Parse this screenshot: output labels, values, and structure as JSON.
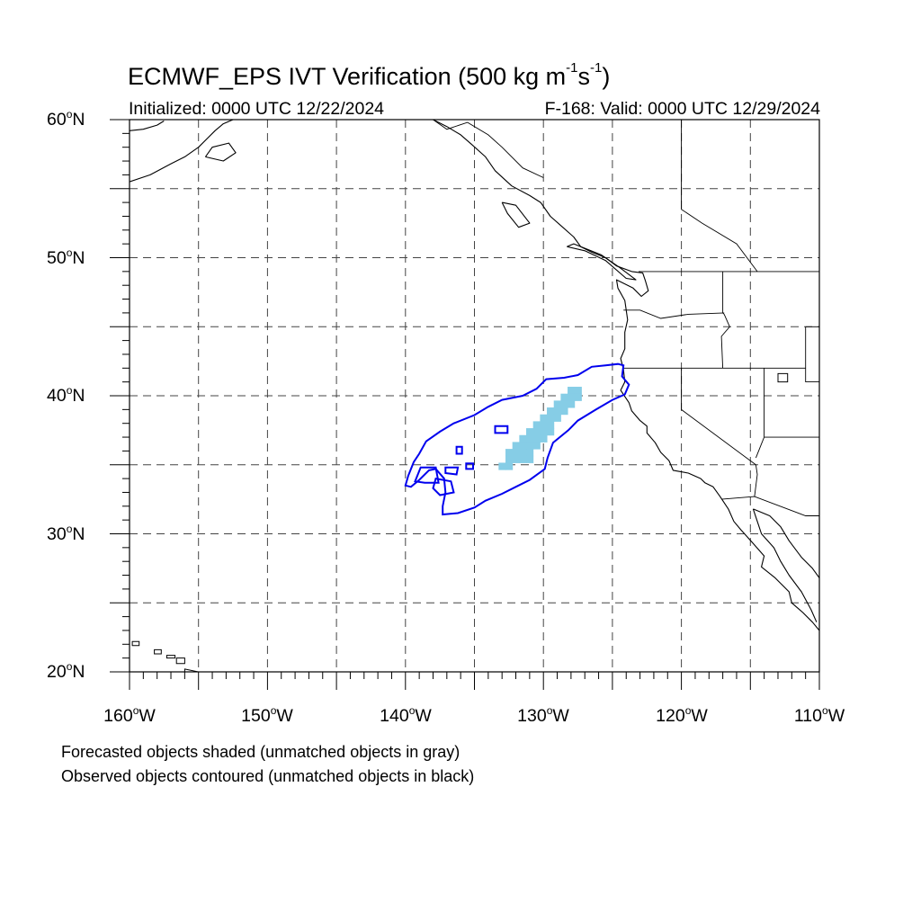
{
  "title": {
    "prefix": "ECMWF_EPS IVT Verification (500 kg m",
    "sup1": "-1",
    "mid": "s",
    "sup2": "-1",
    "suffix": ")"
  },
  "initialized": "Initialized: 0000 UTC 12/22/2024",
  "valid": "F-168: Valid: 0000 UTC 12/29/2024",
  "latitude_labels": [
    {
      "deg": "60",
      "hemi": "N",
      "value": 60
    },
    {
      "deg": "50",
      "hemi": "N",
      "value": 50
    },
    {
      "deg": "40",
      "hemi": "N",
      "value": 40
    },
    {
      "deg": "30",
      "hemi": "N",
      "value": 30
    },
    {
      "deg": "20",
      "hemi": "N",
      "value": 20
    }
  ],
  "longitude_labels": [
    {
      "deg": "160",
      "hemi": "W",
      "value": -160
    },
    {
      "deg": "150",
      "hemi": "W",
      "value": -150
    },
    {
      "deg": "140",
      "hemi": "W",
      "value": -140
    },
    {
      "deg": "130",
      "hemi": "W",
      "value": -130
    },
    {
      "deg": "120",
      "hemi": "W",
      "value": -120
    },
    {
      "deg": "110",
      "hemi": "W",
      "value": -110
    }
  ],
  "footnotes": {
    "forecast": "Forecasted objects shaded (unmatched objects in gray)",
    "observed": "Observed objects contoured (unmatched objects in black)"
  },
  "map_extent": {
    "lon_min": -160,
    "lon_max": -110,
    "lat_min": 20,
    "lat_max": 60
  },
  "colors": {
    "forecast_fill": "#86cde6",
    "observed_contour": "#0000ee",
    "coastline": "#000000",
    "grid": "#444444"
  },
  "forecast_object": {
    "cells": [
      [
        -128,
        40.4
      ],
      [
        -127.5,
        40.4
      ],
      [
        -128.5,
        39.9
      ],
      [
        -128,
        39.9
      ],
      [
        -127.5,
        39.9
      ],
      [
        -129,
        39.4
      ],
      [
        -128.5,
        39.4
      ],
      [
        -128,
        39.4
      ],
      [
        -129.5,
        38.9
      ],
      [
        -129,
        38.9
      ],
      [
        -128.5,
        38.9
      ],
      [
        -130,
        38.4
      ],
      [
        -129.5,
        38.4
      ],
      [
        -129,
        38.4
      ],
      [
        -130.5,
        37.9
      ],
      [
        -130,
        37.9
      ],
      [
        -129.5,
        37.9
      ],
      [
        -131,
        37.4
      ],
      [
        -130.5,
        37.4
      ],
      [
        -130,
        37.4
      ],
      [
        -129.5,
        37.4
      ],
      [
        -131.5,
        36.9
      ],
      [
        -131,
        36.9
      ],
      [
        -130.5,
        36.9
      ],
      [
        -130,
        36.9
      ],
      [
        -132,
        36.4
      ],
      [
        -131.5,
        36.4
      ],
      [
        -131,
        36.4
      ],
      [
        -130.5,
        36.4
      ],
      [
        -132.5,
        35.9
      ],
      [
        -132,
        35.9
      ],
      [
        -131.5,
        35.9
      ],
      [
        -131,
        35.9
      ],
      [
        -132.5,
        35.4
      ],
      [
        -132,
        35.4
      ],
      [
        -131.5,
        35.4
      ],
      [
        -131,
        35.4
      ],
      [
        -133,
        34.9
      ],
      [
        -132.5,
        34.9
      ]
    ],
    "cell_size_deg": 0.5
  },
  "observed_object": {
    "outer": [
      [
        -124.2,
        42.2
      ],
      [
        -124.6,
        42.3
      ],
      [
        -125.5,
        42.2
      ],
      [
        -126.5,
        42.1
      ],
      [
        -127.5,
        41.5
      ],
      [
        -128.5,
        41.3
      ],
      [
        -129.8,
        41.2
      ],
      [
        -130.5,
        40.5
      ],
      [
        -131.5,
        40.0
      ],
      [
        -133.0,
        39.7
      ],
      [
        -134.0,
        39.2
      ],
      [
        -135.0,
        38.6
      ],
      [
        -136.5,
        38.0
      ],
      [
        -137.5,
        37.4
      ],
      [
        -138.5,
        36.7
      ],
      [
        -139.0,
        35.8
      ],
      [
        -139.4,
        35.2
      ],
      [
        -139.8,
        34.2
      ],
      [
        -140.0,
        33.5
      ],
      [
        -139.6,
        33.4
      ],
      [
        -139.0,
        33.9
      ],
      [
        -138.3,
        34.6
      ],
      [
        -137.8,
        34.7
      ],
      [
        -137.2,
        34.0
      ],
      [
        -137.1,
        33.0
      ],
      [
        -137.3,
        32.0
      ],
      [
        -137.3,
        31.4
      ],
      [
        -136.2,
        31.5
      ],
      [
        -135.0,
        31.9
      ],
      [
        -134.2,
        32.4
      ],
      [
        -133.0,
        32.9
      ],
      [
        -132.0,
        33.4
      ],
      [
        -131.0,
        33.9
      ],
      [
        -129.9,
        34.7
      ],
      [
        -129.7,
        35.5
      ],
      [
        -129.3,
        36.6
      ],
      [
        -128.2,
        37.5
      ],
      [
        -127.5,
        38.2
      ],
      [
        -126.2,
        39.0
      ],
      [
        -125.0,
        39.7
      ],
      [
        -124.1,
        40.1
      ],
      [
        -123.8,
        40.8
      ],
      [
        -124.3,
        41.4
      ],
      [
        -124.2,
        42.2
      ]
    ],
    "holes": [
      [
        [
          -133.5,
          37.8
        ],
        [
          -132.6,
          37.8
        ],
        [
          -132.6,
          37.3
        ],
        [
          -133.5,
          37.3
        ]
      ],
      [
        [
          -136.3,
          36.3
        ],
        [
          -135.9,
          36.3
        ],
        [
          -135.9,
          35.8
        ],
        [
          -136.3,
          35.8
        ]
      ],
      [
        [
          -135.6,
          35.1
        ],
        [
          -135.1,
          35.1
        ],
        [
          -135.1,
          34.7
        ],
        [
          -135.6,
          34.7
        ]
      ],
      [
        [
          -138.9,
          34.8
        ],
        [
          -137.8,
          34.8
        ],
        [
          -137.6,
          33.7
        ],
        [
          -138.6,
          33.7
        ],
        [
          -139.3,
          33.8
        ]
      ],
      [
        [
          -137.8,
          34.0
        ],
        [
          -136.7,
          33.8
        ],
        [
          -136.5,
          33.0
        ],
        [
          -137.5,
          32.8
        ],
        [
          -138.0,
          33.3
        ]
      ],
      [
        [
          -137.1,
          34.8
        ],
        [
          -136.2,
          34.8
        ],
        [
          -136.3,
          34.3
        ],
        [
          -137.1,
          34.4
        ]
      ]
    ]
  },
  "coastlines": {
    "alaska": [
      [
        -160,
        55.5
      ],
      [
        -158.5,
        56.0
      ],
      [
        -157.0,
        56.8
      ],
      [
        -156.0,
        57.3
      ],
      [
        -155.0,
        58.0
      ],
      [
        -154.3,
        58.7
      ],
      [
        -153.8,
        59.2
      ],
      [
        -153.2,
        59.7
      ],
      [
        -152.5,
        60
      ]
    ],
    "alaska_peninsula_top": [
      [
        -160,
        59.2
      ],
      [
        -159.0,
        59.3
      ],
      [
        -158.0,
        59.6
      ],
      [
        -157.5,
        59.9
      ]
    ],
    "kodiak": [
      [
        -154.5,
        57.3
      ],
      [
        -153.2,
        57.0
      ],
      [
        -152.3,
        57.6
      ],
      [
        -152.8,
        58.3
      ],
      [
        -154.0,
        58.0
      ],
      [
        -154.5,
        57.3
      ]
    ],
    "pacific_nw": [
      [
        -138.0,
        60
      ],
      [
        -137.0,
        59.5
      ],
      [
        -136.0,
        58.9
      ],
      [
        -135.2,
        58.2
      ],
      [
        -134.2,
        57.3
      ],
      [
        -133.5,
        56.3
      ],
      [
        -132.3,
        55.2
      ],
      [
        -131.0,
        54.5
      ],
      [
        -130.2,
        54.0
      ],
      [
        -129.5,
        53.0
      ],
      [
        -128.6,
        52.2
      ],
      [
        -127.8,
        51.5
      ],
      [
        -127.3,
        50.8
      ],
      [
        -126.5,
        50.4
      ],
      [
        -125.5,
        50.0
      ],
      [
        -124.7,
        49.4
      ],
      [
        -123.6,
        49.0
      ],
      [
        -122.8,
        48.9
      ],
      [
        -122.6,
        48.3
      ],
      [
        -122.4,
        47.6
      ],
      [
        -122.9,
        47.2
      ],
      [
        -123.5,
        47.8
      ],
      [
        -124.7,
        48.4
      ],
      [
        -124.6,
        47.8
      ],
      [
        -124.1,
        46.9
      ],
      [
        -123.9,
        45.5
      ],
      [
        -124.1,
        44.6
      ],
      [
        -124.1,
        43.4
      ],
      [
        -124.4,
        42.7
      ],
      [
        -124.2,
        41.9
      ],
      [
        -124.1,
        41.0
      ],
      [
        -124.4,
        40.4
      ],
      [
        -123.8,
        39.5
      ],
      [
        -123.6,
        38.9
      ],
      [
        -123.0,
        38.2
      ],
      [
        -122.5,
        37.8
      ],
      [
        -122.5,
        37.3
      ],
      [
        -121.9,
        36.6
      ],
      [
        -121.5,
        35.9
      ],
      [
        -120.9,
        35.3
      ],
      [
        -120.6,
        34.6
      ],
      [
        -119.5,
        34.4
      ],
      [
        -118.6,
        34.0
      ],
      [
        -118.3,
        33.7
      ],
      [
        -117.7,
        33.4
      ],
      [
        -117.2,
        32.7
      ],
      [
        -116.6,
        31.8
      ],
      [
        -116.2,
        30.9
      ],
      [
        -115.7,
        30.3
      ],
      [
        -114.8,
        29.3
      ],
      [
        -114.0,
        28.4
      ],
      [
        -114.2,
        27.6
      ],
      [
        -113.2,
        26.8
      ],
      [
        -112.2,
        25.8
      ],
      [
        -112.0,
        25.0
      ],
      [
        -111.2,
        24.3
      ],
      [
        -110.5,
        23.6
      ],
      [
        -110.0,
        23.0
      ]
    ],
    "vancouver_island": [
      [
        -128.3,
        50.8
      ],
      [
        -127.0,
        50.5
      ],
      [
        -125.5,
        49.8
      ],
      [
        -124.0,
        48.5
      ],
      [
        -123.3,
        48.4
      ],
      [
        -124.5,
        49.3
      ],
      [
        -125.8,
        50.2
      ],
      [
        -127.8,
        51.0
      ],
      [
        -128.3,
        50.8
      ]
    ],
    "haida_gwaii": [
      [
        -133.0,
        54.0
      ],
      [
        -132.0,
        53.8
      ],
      [
        -131.0,
        52.5
      ],
      [
        -131.8,
        52.2
      ],
      [
        -132.6,
        53.2
      ],
      [
        -133.0,
        54.0
      ]
    ],
    "gulf_of_california_east": [
      [
        -114.8,
        31.8
      ],
      [
        -113.6,
        31.3
      ],
      [
        -112.8,
        30.5
      ],
      [
        -112.2,
        29.5
      ],
      [
        -111.3,
        28.3
      ],
      [
        -110.5,
        27.5
      ],
      [
        -110.0,
        26.8
      ]
    ],
    "gulf_of_california_west": [
      [
        -114.8,
        31.8
      ],
      [
        -114.5,
        30.9
      ],
      [
        -114.2,
        30.0
      ],
      [
        -113.3,
        29.0
      ],
      [
        -112.8,
        28.0
      ],
      [
        -112.2,
        27.0
      ],
      [
        -111.3,
        25.8
      ],
      [
        -110.6,
        24.5
      ],
      [
        -110.2,
        23.6
      ]
    ],
    "hawaii": [
      [
        [
          -159.8,
          22.2
        ],
        [
          -159.3,
          22.2
        ],
        [
          -159.3,
          21.9
        ],
        [
          -159.8,
          21.9
        ],
        [
          -159.8,
          22.2
        ]
      ],
      [
        [
          -158.2,
          21.6
        ],
        [
          -157.7,
          21.6
        ],
        [
          -157.7,
          21.3
        ],
        [
          -158.2,
          21.3
        ],
        [
          -158.2,
          21.6
        ]
      ],
      [
        [
          -157.3,
          21.2
        ],
        [
          -156.7,
          21.2
        ],
        [
          -156.7,
          21.0
        ],
        [
          -157.3,
          21.0
        ],
        [
          -157.3,
          21.2
        ]
      ],
      [
        [
          -156.6,
          21.0
        ],
        [
          -156.0,
          21.0
        ],
        [
          -156.0,
          20.6
        ],
        [
          -156.6,
          20.6
        ],
        [
          -156.6,
          21.0
        ]
      ],
      [
        [
          -156.0,
          20.2
        ],
        [
          -155.0,
          20.0
        ],
        [
          -154.8,
          19.5
        ],
        [
          -155.5,
          19.0
        ],
        [
          -156.0,
          19.6
        ],
        [
          -156.0,
          20.2
        ]
      ]
    ],
    "lake_bit": [
      [
        [
          -113.0,
          41.6
        ],
        [
          -112.3,
          41.6
        ],
        [
          -112.3,
          41.0
        ],
        [
          -113.0,
          41.0
        ],
        [
          -113.0,
          41.6
        ]
      ]
    ]
  },
  "borders": [
    [
      [
        -123.1,
        49.0
      ],
      [
        -110.0,
        49.0
      ]
    ],
    [
      [
        -117.0,
        49.0
      ],
      [
        -117.0,
        46.0
      ],
      [
        -116.9,
        45.9
      ]
    ],
    [
      [
        -124.2,
        46.2
      ],
      [
        -123.0,
        46.2
      ],
      [
        -121.5,
        45.6
      ],
      [
        -119.5,
        45.9
      ],
      [
        -116.9,
        46.0
      ]
    ],
    [
      [
        -124.2,
        42.0
      ],
      [
        -111.0,
        42.0
      ]
    ],
    [
      [
        -116.9,
        45.9
      ],
      [
        -116.5,
        45.0
      ],
      [
        -117.1,
        44.3
      ],
      [
        -117.0,
        42.0
      ]
    ],
    [
      [
        -120.0,
        42.0
      ],
      [
        -120.0,
        39.0
      ],
      [
        -114.6,
        35.0
      ],
      [
        -114.5,
        34.3
      ],
      [
        -114.7,
        32.7
      ]
    ],
    [
      [
        -117.1,
        32.5
      ],
      [
        -114.7,
        32.7
      ],
      [
        -111.0,
        31.3
      ],
      [
        -110,
        31.3
      ]
    ],
    [
      [
        -114.0,
        42.0
      ],
      [
        -114.0,
        37.0
      ],
      [
        -114.6,
        35.5
      ]
    ],
    [
      [
        -114.0,
        37.0
      ],
      [
        -110,
        37.0
      ]
    ],
    [
      [
        -111.0,
        45.0
      ],
      [
        -111.0,
        41.0
      ],
      [
        -110,
        41.0
      ]
    ],
    [
      [
        -110,
        45.0
      ],
      [
        -111.0,
        45.0
      ]
    ],
    [
      [
        -116.0,
        49.0
      ],
      [
        -116.0,
        49.0
      ]
    ],
    [
      [
        -138.0,
        60.0
      ],
      [
        -137.0,
        59.3
      ],
      [
        -135.5,
        59.8
      ],
      [
        -134.0,
        58.9
      ],
      [
        -133.0,
        58.0
      ],
      [
        -131.5,
        56.5
      ],
      [
        -130.0,
        55.8
      ]
    ],
    [
      [
        -120.0,
        60.0
      ],
      [
        -120.0,
        53.5
      ],
      [
        -118.5,
        52.5
      ],
      [
        -116.0,
        51.0
      ],
      [
        -114.5,
        49.0
      ]
    ],
    [
      [
        -110.0,
        60.0
      ],
      [
        -110.0,
        49.0
      ]
    ]
  ]
}
